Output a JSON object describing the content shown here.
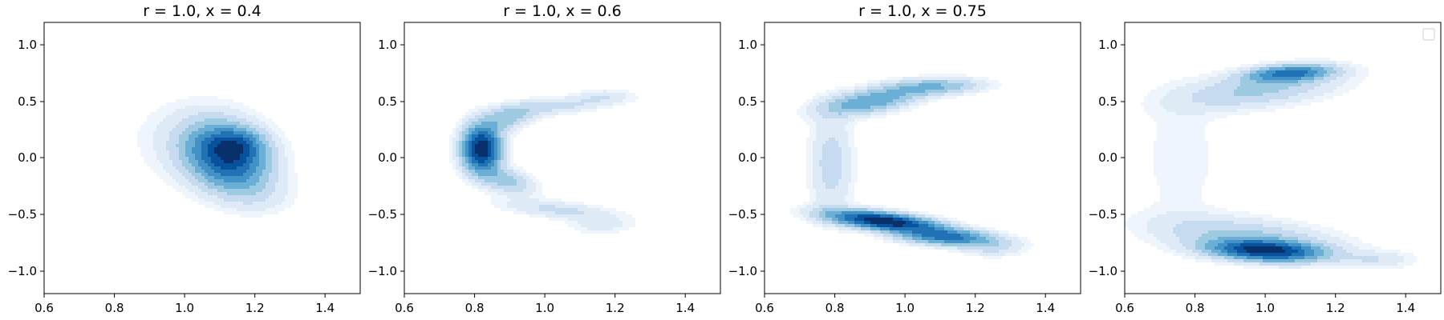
{
  "chart_data": [
    {
      "type": "contour",
      "title": "r = 1.0, x = 0.4",
      "xlim": [
        0.6,
        1.5
      ],
      "ylim": [
        -1.2,
        1.2
      ],
      "xticks": [
        "0.6",
        "0.8",
        "1.0",
        "1.2",
        "1.4"
      ],
      "yticks": [
        "1.0",
        "0.5",
        "0.0",
        "−0.5",
        "−1.0"
      ],
      "colormap": "Blues",
      "legend": false,
      "density_components": [
        {
          "cx": 1.12,
          "cy": 0.0,
          "sx": 0.075,
          "sy": 0.19,
          "rho": -0.25,
          "w": 1.0
        },
        {
          "cx": 1.15,
          "cy": 0.12,
          "sx": 0.05,
          "sy": 0.09,
          "rho": 0.0,
          "w": 0.45
        },
        {
          "cx": 1.05,
          "cy": 0.12,
          "sx": 0.12,
          "sy": 0.24,
          "rho": -0.1,
          "w": 0.12
        },
        {
          "cx": 1.22,
          "cy": -0.35,
          "sx": 0.07,
          "sy": 0.1,
          "rho": 0.0,
          "w": 0.07
        }
      ]
    },
    {
      "type": "contour",
      "title": "r = 1.0, x = 0.6",
      "xlim": [
        0.6,
        1.5
      ],
      "ylim": [
        -1.2,
        1.2
      ],
      "xticks": [
        "0.6",
        "0.8",
        "1.0",
        "1.2",
        "1.4"
      ],
      "yticks": [
        "1.0",
        "0.5",
        "0.0",
        "−0.5",
        "−1.0"
      ],
      "colormap": "Blues",
      "legend": false,
      "density_components": [
        {
          "cx": 0.82,
          "cy": 0.08,
          "sx": 0.035,
          "sy": 0.13,
          "rho": 0.0,
          "w": 1.0
        },
        {
          "cx": 0.89,
          "cy": 0.35,
          "sx": 0.05,
          "sy": 0.08,
          "rho": 0.4,
          "w": 0.25
        },
        {
          "cx": 0.89,
          "cy": -0.2,
          "sx": 0.05,
          "sy": 0.08,
          "rho": -0.4,
          "w": 0.25
        },
        {
          "cx": 1.04,
          "cy": 0.46,
          "sx": 0.11,
          "sy": 0.06,
          "rho": 0.55,
          "w": 0.14
        },
        {
          "cx": 1.04,
          "cy": -0.46,
          "sx": 0.11,
          "sy": 0.06,
          "rho": -0.55,
          "w": 0.14
        },
        {
          "cx": 1.17,
          "cy": 0.55,
          "sx": 0.05,
          "sy": 0.04,
          "rho": 0.0,
          "w": 0.08
        },
        {
          "cx": 1.16,
          "cy": -0.6,
          "sx": 0.06,
          "sy": 0.05,
          "rho": 0.0,
          "w": 0.08
        }
      ]
    },
    {
      "type": "contour",
      "title": "r = 1.0, x = 0.75",
      "xlim": [
        0.6,
        1.5
      ],
      "ylim": [
        -1.2,
        1.2
      ],
      "xticks": [
        "0.6",
        "0.8",
        "1.0",
        "1.2",
        "1.4"
      ],
      "yticks": [
        "1.0",
        "0.5",
        "0.0",
        "−0.5",
        "−1.0"
      ],
      "colormap": "Blues",
      "legend": false,
      "density_components": [
        {
          "cx": 0.94,
          "cy": -0.56,
          "sx": 0.1,
          "sy": 0.06,
          "rho": -0.55,
          "w": 1.0
        },
        {
          "cx": 1.12,
          "cy": -0.7,
          "sx": 0.09,
          "sy": 0.05,
          "rho": -0.3,
          "w": 0.6
        },
        {
          "cx": 0.9,
          "cy": 0.5,
          "sx": 0.09,
          "sy": 0.08,
          "rho": 0.5,
          "w": 0.4
        },
        {
          "cx": 1.08,
          "cy": 0.63,
          "sx": 0.09,
          "sy": 0.05,
          "rho": 0.2,
          "w": 0.3
        },
        {
          "cx": 0.79,
          "cy": -0.05,
          "sx": 0.04,
          "sy": 0.3,
          "rho": 0.0,
          "w": 0.16
        },
        {
          "cx": 1.25,
          "cy": -0.8,
          "sx": 0.06,
          "sy": 0.05,
          "rho": 0.0,
          "w": 0.12
        }
      ]
    },
    {
      "type": "contour",
      "title": "",
      "xlim": [
        0.6,
        1.5
      ],
      "ylim": [
        -1.2,
        1.2
      ],
      "xticks": [
        "0.6",
        "0.8",
        "1.0",
        "1.2",
        "1.4"
      ],
      "yticks": [
        "1.0",
        "0.5",
        "0.0",
        "−0.5",
        "−1.0"
      ],
      "colormap": "Blues",
      "legend": true,
      "legend_location": "upper right",
      "legend_entries": [],
      "density_components": [
        {
          "cx": 1.0,
          "cy": -0.82,
          "sx": 0.1,
          "sy": 0.06,
          "rho": -0.25,
          "w": 1.0
        },
        {
          "cx": 1.07,
          "cy": 0.75,
          "sx": 0.08,
          "sy": 0.05,
          "rho": 0.3,
          "w": 0.65
        },
        {
          "cx": 0.98,
          "cy": 0.6,
          "sx": 0.15,
          "sy": 0.11,
          "rho": 0.45,
          "w": 0.25
        },
        {
          "cx": 0.95,
          "cy": -0.7,
          "sx": 0.17,
          "sy": 0.12,
          "rho": -0.45,
          "w": 0.25
        },
        {
          "cx": 0.76,
          "cy": 0.0,
          "sx": 0.08,
          "sy": 0.45,
          "rho": 0.0,
          "w": 0.055
        },
        {
          "cx": 1.32,
          "cy": -0.9,
          "sx": 0.07,
          "sy": 0.05,
          "rho": 0.0,
          "w": 0.12
        }
      ]
    }
  ]
}
